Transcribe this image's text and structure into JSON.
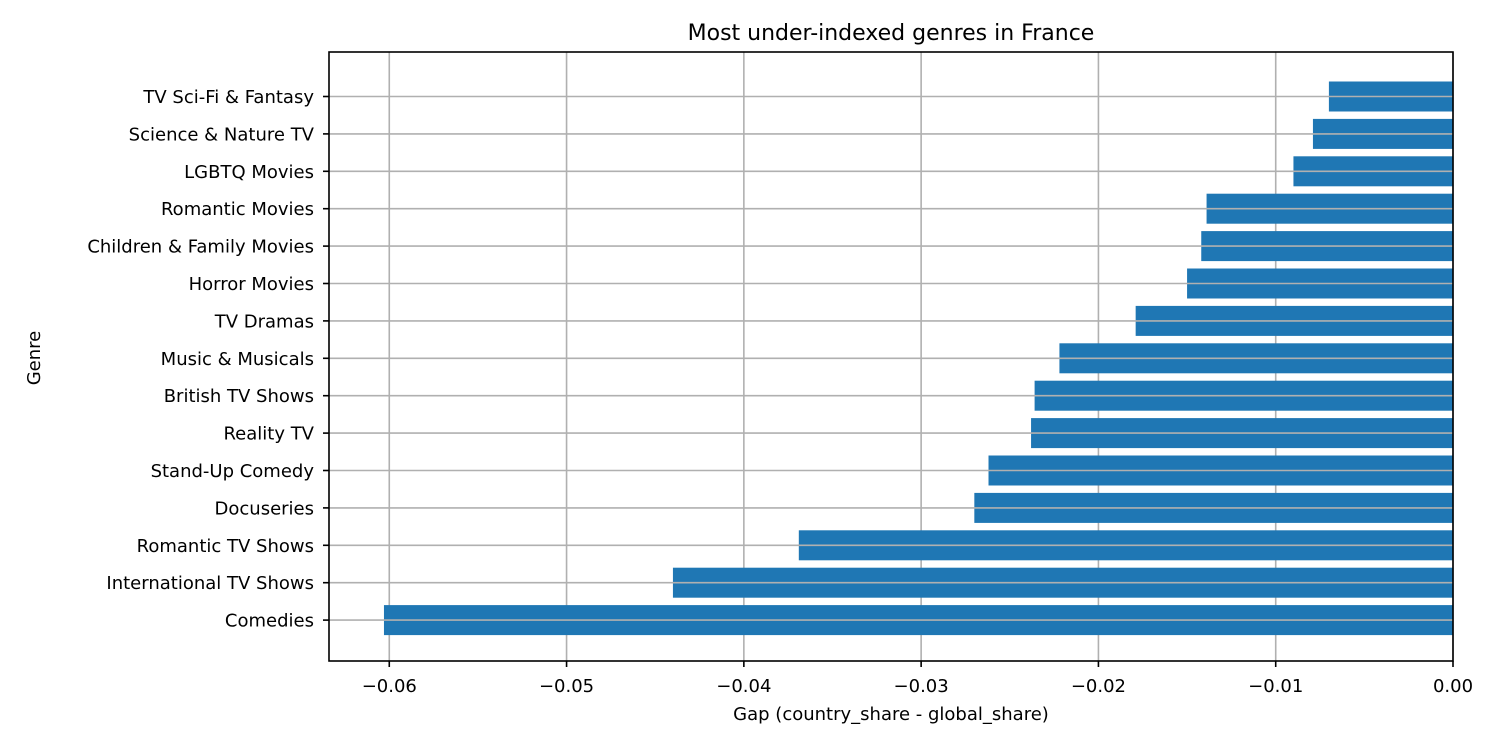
{
  "chart_data": {
    "type": "bar",
    "orientation": "horizontal",
    "title": "Most under-indexed genres in France",
    "xlabel": "Gap (country_share - global_share)",
    "ylabel": "Genre",
    "xlim": [
      -0.0634,
      0.0
    ],
    "xticks": [
      -0.06,
      -0.05,
      -0.04,
      -0.03,
      -0.02,
      -0.01,
      0.0
    ],
    "xtick_labels": [
      "−0.06",
      "−0.05",
      "−0.04",
      "−0.03",
      "−0.02",
      "−0.01",
      "0.00"
    ],
    "categories": [
      "Comedies",
      "International TV Shows",
      "Romantic TV Shows",
      "Docuseries",
      "Stand-Up Comedy",
      "Reality TV",
      "British TV Shows",
      "Music & Musicals",
      "TV Dramas",
      "Horror Movies",
      "Children & Family Movies",
      "Romantic Movies",
      "LGBTQ Movies",
      "Science & Nature TV",
      "TV Sci-Fi & Fantasy"
    ],
    "values": [
      -0.0603,
      -0.044,
      -0.0369,
      -0.027,
      -0.0262,
      -0.0238,
      -0.0236,
      -0.0222,
      -0.0179,
      -0.015,
      -0.0142,
      -0.0139,
      -0.009,
      -0.0079,
      -0.007
    ],
    "grid": true,
    "bar_color": "#1f77b4",
    "grid_color": "#b0b0b0"
  }
}
